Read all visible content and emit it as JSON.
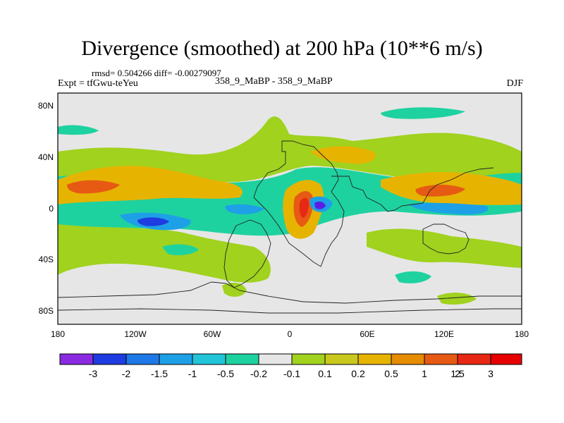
{
  "title": "Divergence (smoothed) at 200 hPa (10**6 m/s)",
  "stats": "rmsd= 0.504266  diff= -0.00279097",
  "experiment": "Expt = tfGwu-teYeu",
  "cases": "358_9_MaBP - 358_9_MaBP",
  "season": "DJF",
  "axes": {
    "lat_labels": [
      "80N",
      "40N",
      "0",
      "40S",
      "80S"
    ],
    "lon_labels": [
      "180",
      "120W",
      "60W",
      "0",
      "60E",
      "120E",
      "180"
    ]
  },
  "colorbar": {
    "colors": [
      "#8a2be2",
      "#1e3ce0",
      "#1e78e6",
      "#1ea0e6",
      "#22c4d8",
      "#1ed2a0",
      "#e6e6e6",
      "#a0d21e",
      "#c8c81e",
      "#e6b400",
      "#e68c00",
      "#e65a14",
      "#e62814",
      "#e60000"
    ],
    "labels": [
      "-3",
      "-2",
      "-1.5",
      "-1",
      "-0.5",
      "-0.2",
      "-0.1",
      "0.1",
      "0.2",
      "0.5",
      "1",
      "1.5",
      "2",
      "3"
    ]
  },
  "map_colors": {
    "background": "#e6e6e6",
    "pos_weak": "#a0d21e",
    "pos_mid": "#e6b400",
    "pos_strong": "#e65a14",
    "pos_max": "#e62814",
    "neg_weak": "#1ed2a0",
    "neg_mid": "#1ea0e6",
    "neg_strong": "#1e3ce0",
    "neg_max": "#5a1ee6",
    "coastline": "#222222"
  }
}
